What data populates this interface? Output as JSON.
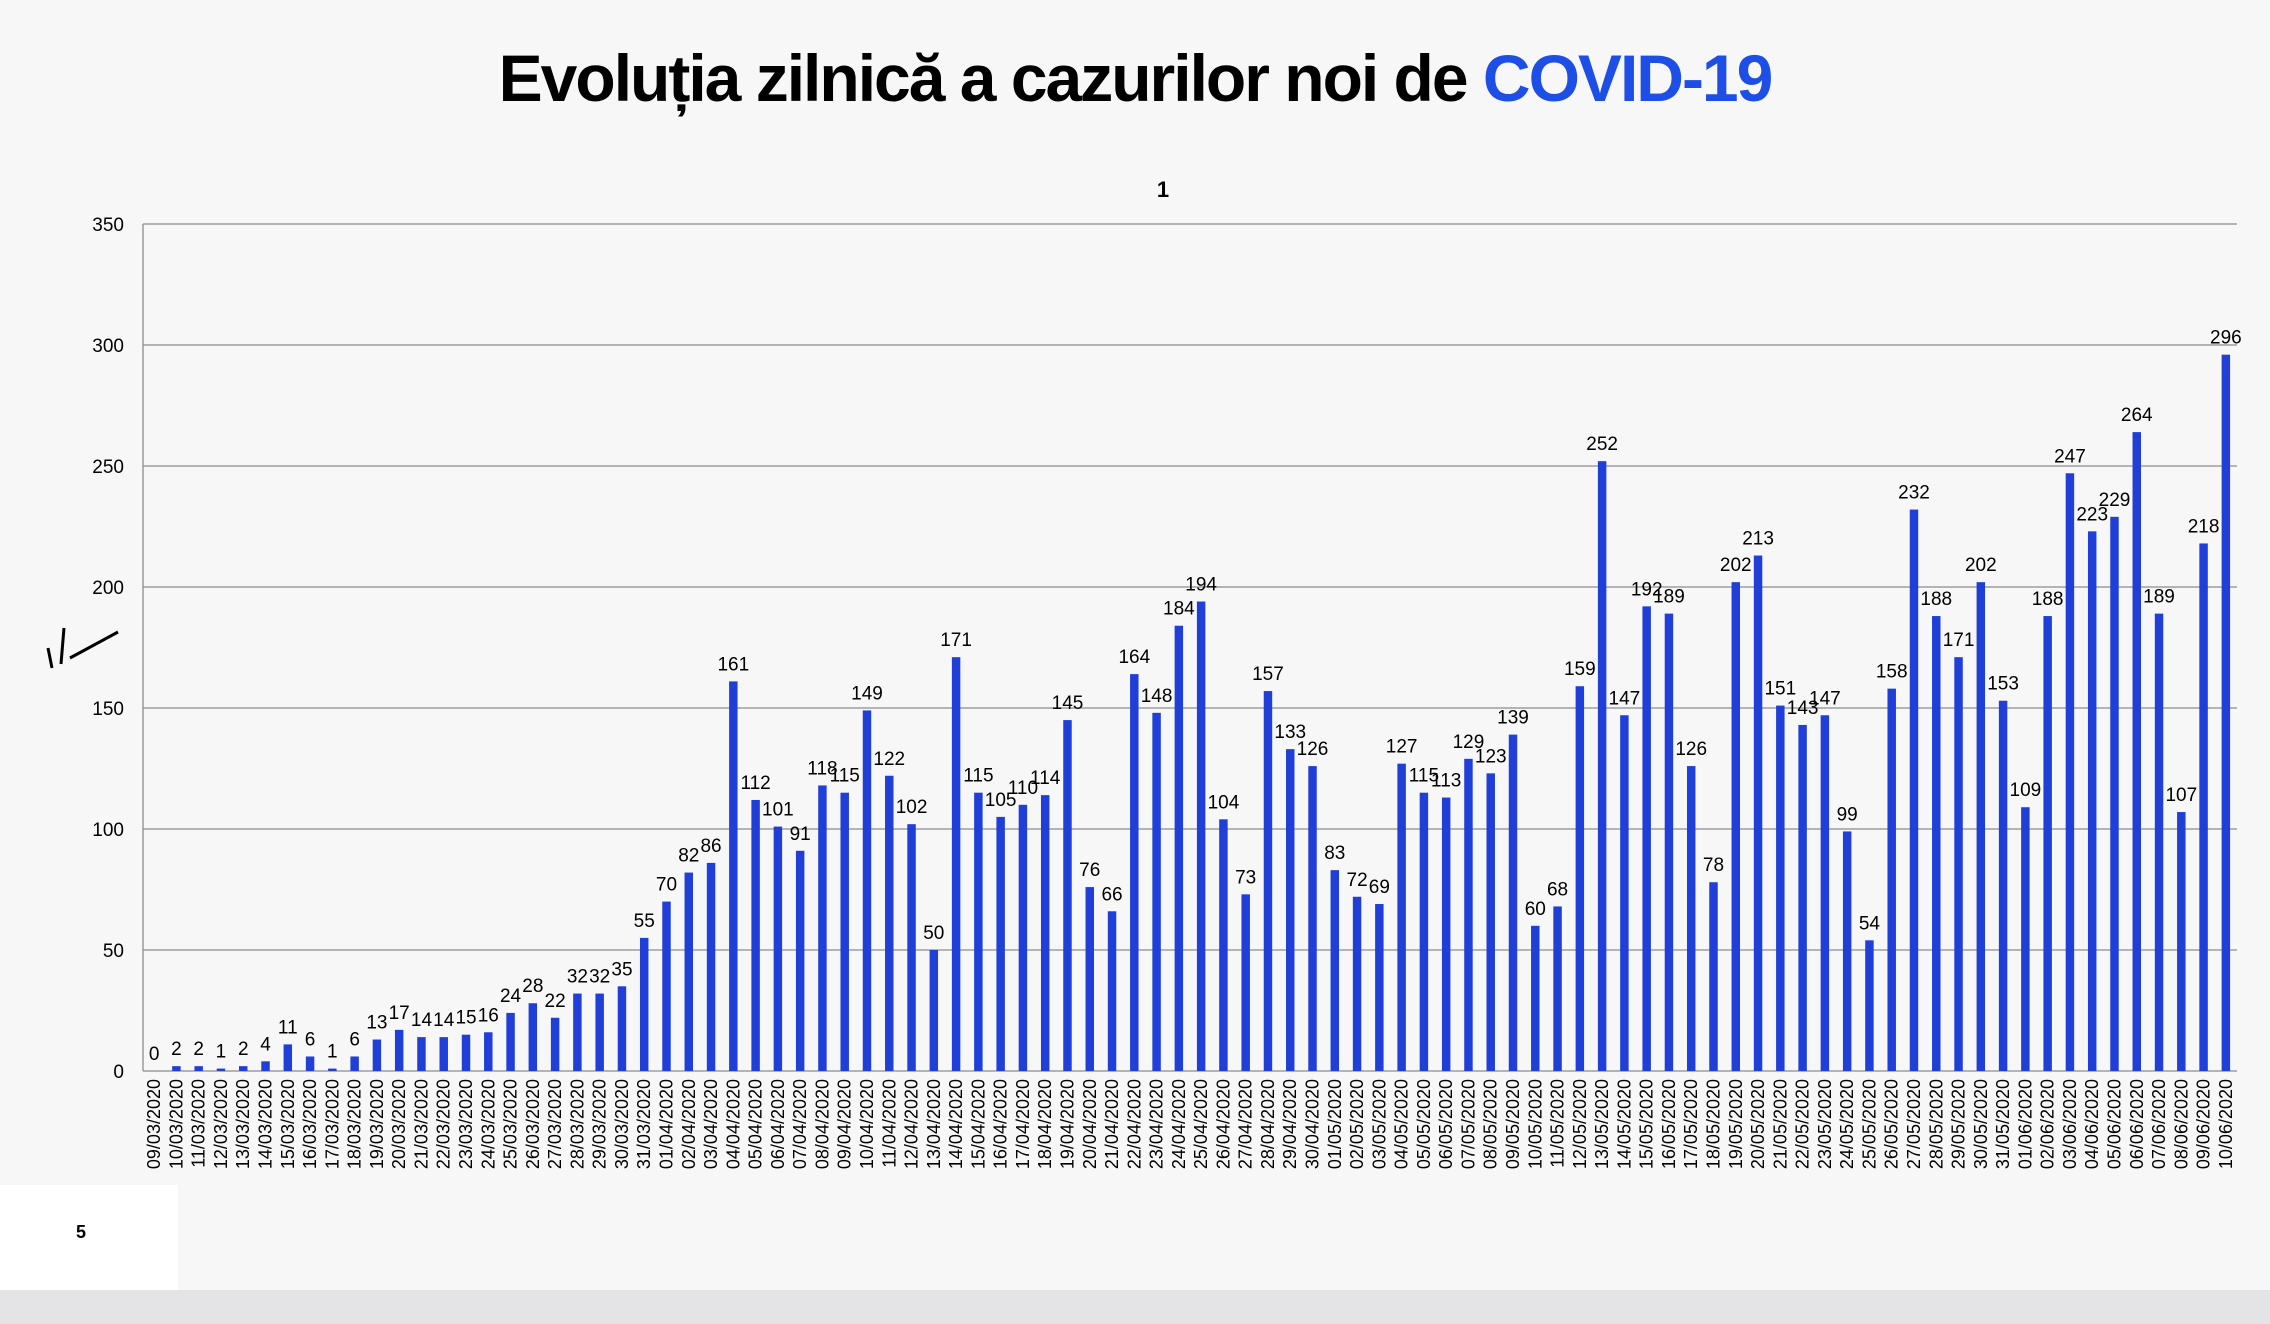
{
  "slide": {
    "title_prefix": "Evoluția zilnică a cazurilor noi de ",
    "title_highlight": "COVID-19",
    "page_number": "5"
  },
  "colors": {
    "bar": "#1f3fd8",
    "title_accent": "#1d4ee6",
    "grid": "#8c8c8c"
  },
  "chart_data": {
    "type": "bar",
    "title": "1",
    "xlabel": "",
    "ylabel": "",
    "ylim": [
      0,
      350
    ],
    "yticks": [
      0,
      50,
      100,
      150,
      200,
      250,
      300,
      350
    ],
    "grid": true,
    "data_labels": true,
    "categories": [
      "09/03/2020",
      "10/03/2020",
      "11/03/2020",
      "12/03/2020",
      "13/03/2020",
      "14/03/2020",
      "15/03/2020",
      "16/03/2020",
      "17/03/2020",
      "18/03/2020",
      "19/03/2020",
      "20/03/2020",
      "21/03/2020",
      "22/03/2020",
      "23/03/2020",
      "24/03/2020",
      "25/03/2020",
      "26/03/2020",
      "27/03/2020",
      "28/03/2020",
      "29/03/2020",
      "30/03/2020",
      "31/03/2020",
      "01/04/2020",
      "02/04/2020",
      "03/04/2020",
      "04/04/2020",
      "05/04/2020",
      "06/04/2020",
      "07/04/2020",
      "08/04/2020",
      "09/04/2020",
      "10/04/2020",
      "11/04/2020",
      "12/04/2020",
      "13/04/2020",
      "14/04/2020",
      "15/04/2020",
      "16/04/2020",
      "17/04/2020",
      "18/04/2020",
      "19/04/2020",
      "20/04/2020",
      "21/04/2020",
      "22/04/2020",
      "23/04/2020",
      "24/04/2020",
      "25/04/2020",
      "26/04/2020",
      "27/04/2020",
      "28/04/2020",
      "29/04/2020",
      "30/04/2020",
      "01/05/2020",
      "02/05/2020",
      "03/05/2020",
      "04/05/2020",
      "05/05/2020",
      "06/05/2020",
      "07/05/2020",
      "08/05/2020",
      "09/05/2020",
      "10/05/2020",
      "11/05/2020",
      "12/05/2020",
      "13/05/2020",
      "14/05/2020",
      "15/05/2020",
      "16/05/2020",
      "17/05/2020",
      "18/05/2020",
      "19/05/2020",
      "20/05/2020",
      "21/05/2020",
      "22/05/2020",
      "23/05/2020",
      "24/05/2020",
      "25/05/2020",
      "26/05/2020",
      "27/05/2020",
      "28/05/2020",
      "29/05/2020",
      "30/05/2020",
      "31/05/2020",
      "01/06/2020",
      "02/06/2020",
      "03/06/2020",
      "04/06/2020",
      "05/06/2020",
      "06/06/2020",
      "07/06/2020",
      "08/06/2020",
      "09/06/2020",
      "10/06/2020"
    ],
    "values": [
      0,
      2,
      2,
      1,
      2,
      4,
      11,
      6,
      1,
      6,
      13,
      17,
      14,
      14,
      15,
      16,
      24,
      28,
      22,
      32,
      32,
      35,
      55,
      70,
      82,
      86,
      161,
      112,
      101,
      91,
      118,
      115,
      149,
      122,
      102,
      50,
      171,
      115,
      105,
      110,
      114,
      145,
      76,
      66,
      164,
      148,
      184,
      194,
      104,
      73,
      157,
      133,
      126,
      83,
      72,
      69,
      127,
      115,
      113,
      129,
      123,
      139,
      60,
      68,
      159,
      252,
      147,
      192,
      189,
      126,
      78,
      202,
      213,
      151,
      143,
      147,
      99,
      54,
      158,
      232,
      188,
      171,
      202,
      153,
      109,
      188,
      247,
      223,
      229,
      264,
      189,
      107,
      218,
      296
    ]
  }
}
